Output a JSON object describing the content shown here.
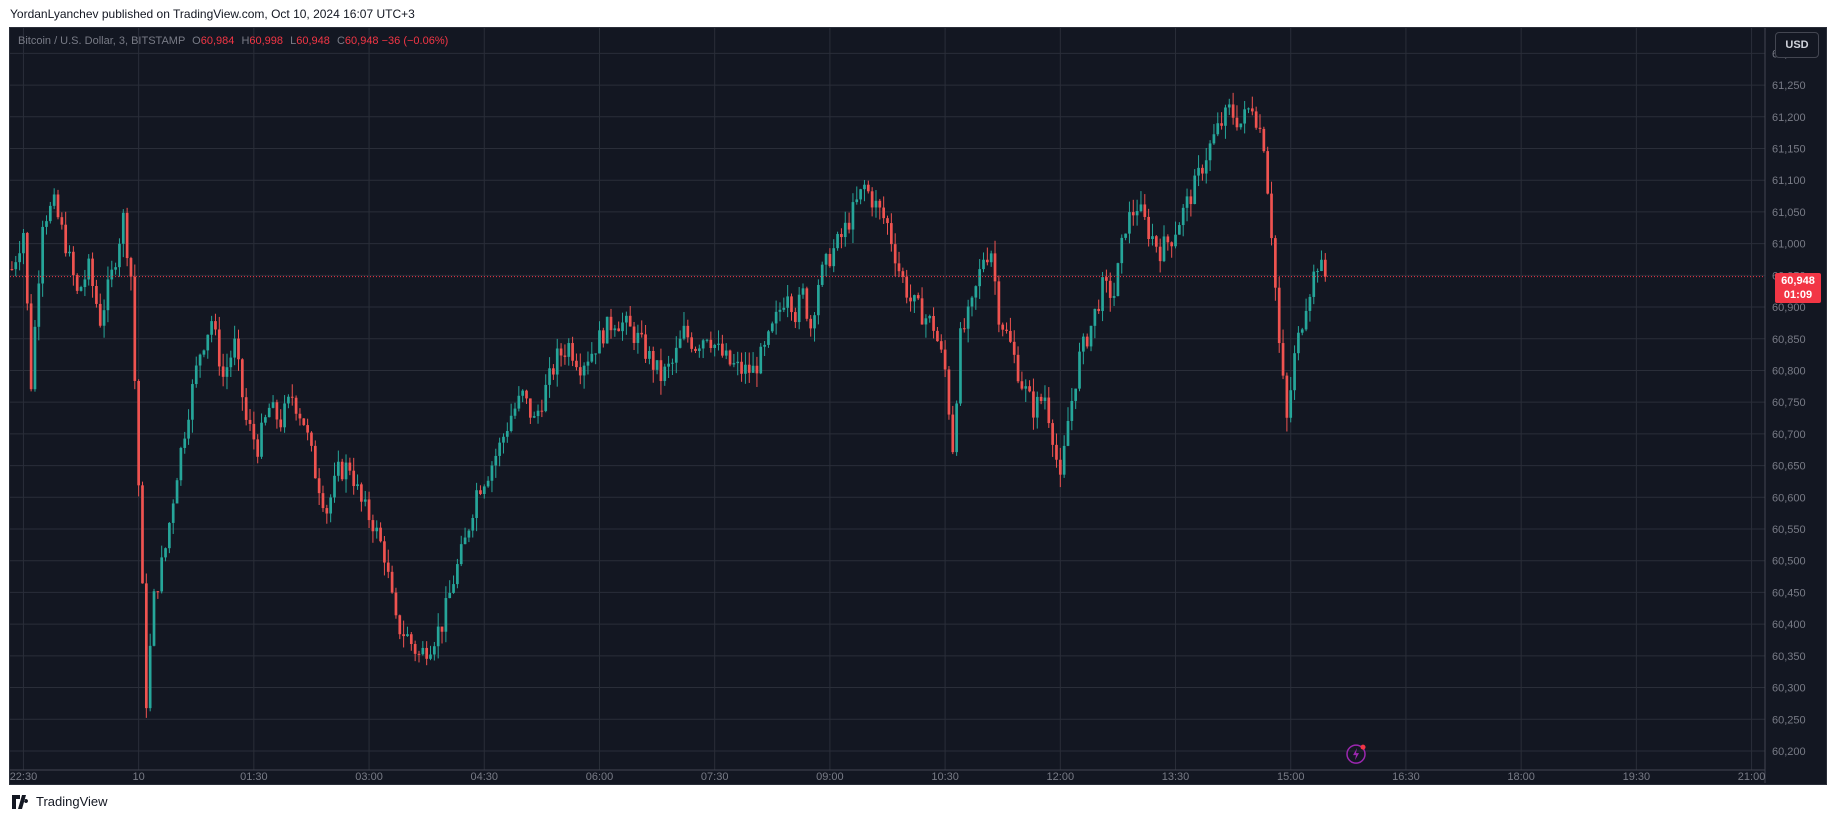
{
  "header": {
    "published_line": "YordanLyanchev published on TradingView.com, Oct 10, 2024 16:07 UTC+3"
  },
  "legend": {
    "symbol": "Bitcoin / U.S. Dollar, 3, BITSTAMP",
    "open_label": "O",
    "open": "60,984",
    "high_label": "H",
    "high": "60,998",
    "low_label": "L",
    "low": "60,948",
    "close_label": "C",
    "close": "60,948",
    "change": "−36 (−0.06%)"
  },
  "currency_button": {
    "label": "USD"
  },
  "last_price": {
    "price": "60,948",
    "countdown": "01:09"
  },
  "footer": {
    "brand": "TradingView"
  },
  "colors": {
    "background": "#131722",
    "grid": "#2a2e39",
    "up": "#26a69a",
    "down": "#ef5350",
    "axis_text": "#787b86",
    "last_price": "#f23645"
  },
  "chart_data": {
    "type": "candlestick",
    "title": "Bitcoin / U.S. Dollar, 3, BITSTAMP",
    "timeframe_minutes": 3,
    "x_start": "Oct 9 22:21",
    "ylim": [
      60170,
      61340
    ],
    "y_ticks": [
      61300,
      61250,
      61200,
      61150,
      61100,
      61050,
      61000,
      60950,
      60900,
      60850,
      60800,
      60750,
      60700,
      60650,
      60600,
      60550,
      60500,
      60450,
      60400,
      60350,
      60300,
      60250,
      60200
    ],
    "y_tick_labels": [
      "61,300",
      "61,250",
      "61,200",
      "61,150",
      "61,100",
      "61,050",
      "61,000",
      "60,950",
      "60,900",
      "60,850",
      "60,800",
      "60,750",
      "60,700",
      "60,650",
      "60,600",
      "60,550",
      "60,500",
      "60,450",
      "60,400",
      "60,350",
      "60,300",
      "60,250",
      "60,200"
    ],
    "x_tick_labels": [
      "22:30",
      "10",
      "01:30",
      "03:00",
      "04:30",
      "06:00",
      "07:30",
      "09:00",
      "10:30",
      "12:00",
      "13:30",
      "15:00",
      "16:30",
      "18:00",
      "19:30",
      "21:00"
    ],
    "x_tick_slots": [
      3,
      33,
      63,
      93,
      123,
      153,
      183,
      213,
      243,
      273,
      303,
      333,
      363,
      393,
      423,
      453
    ],
    "x_slots_total": 457,
    "last_price": 60948,
    "grid": true,
    "anchors": [
      [
        0,
        60960
      ],
      [
        3,
        61020
      ],
      [
        5,
        60780
      ],
      [
        8,
        61040
      ],
      [
        11,
        61060
      ],
      [
        14,
        61000
      ],
      [
        17,
        60920
      ],
      [
        20,
        60960
      ],
      [
        23,
        60880
      ],
      [
        26,
        60950
      ],
      [
        29,
        61040
      ],
      [
        31,
        60950
      ],
      [
        33,
        60620
      ],
      [
        35,
        60280
      ],
      [
        37,
        60440
      ],
      [
        40,
        60520
      ],
      [
        43,
        60640
      ],
      [
        46,
        60740
      ],
      [
        49,
        60830
      ],
      [
        52,
        60880
      ],
      [
        55,
        60790
      ],
      [
        58,
        60840
      ],
      [
        61,
        60720
      ],
      [
        64,
        60680
      ],
      [
        67,
        60740
      ],
      [
        70,
        60720
      ],
      [
        73,
        60760
      ],
      [
        76,
        60720
      ],
      [
        79,
        60640
      ],
      [
        82,
        60580
      ],
      [
        85,
        60640
      ],
      [
        88,
        60650
      ],
      [
        91,
        60590
      ],
      [
        94,
        60560
      ],
      [
        97,
        60510
      ],
      [
        100,
        60400
      ],
      [
        103,
        60380
      ],
      [
        106,
        60350
      ],
      [
        109,
        60370
      ],
      [
        112,
        60400
      ],
      [
        115,
        60470
      ],
      [
        118,
        60530
      ],
      [
        121,
        60610
      ],
      [
        124,
        60640
      ],
      [
        127,
        60680
      ],
      [
        130,
        60730
      ],
      [
        133,
        60760
      ],
      [
        136,
        60720
      ],
      [
        139,
        60770
      ],
      [
        142,
        60820
      ],
      [
        145,
        60840
      ],
      [
        148,
        60810
      ],
      [
        151,
        60830
      ],
      [
        154,
        60860
      ],
      [
        157,
        60880
      ],
      [
        160,
        60870
      ],
      [
        163,
        60850
      ],
      [
        166,
        60820
      ],
      [
        169,
        60790
      ],
      [
        172,
        60810
      ],
      [
        175,
        60860
      ],
      [
        178,
        60840
      ],
      [
        181,
        60860
      ],
      [
        184,
        60830
      ],
      [
        187,
        60810
      ],
      [
        190,
        60800
      ],
      [
        193,
        60800
      ],
      [
        196,
        60830
      ],
      [
        199,
        60880
      ],
      [
        202,
        60930
      ],
      [
        204,
        60890
      ],
      [
        206,
        60920
      ],
      [
        208,
        60870
      ],
      [
        210,
        60940
      ],
      [
        213,
        60980
      ],
      [
        216,
        61010
      ],
      [
        219,
        61050
      ],
      [
        222,
        61090
      ],
      [
        225,
        61060
      ],
      [
        228,
        61030
      ],
      [
        231,
        60960
      ],
      [
        234,
        60910
      ],
      [
        237,
        60890
      ],
      [
        240,
        60870
      ],
      [
        243,
        60800
      ],
      [
        245,
        60680
      ],
      [
        247,
        60850
      ],
      [
        250,
        60900
      ],
      [
        253,
        60980
      ],
      [
        255,
        60990
      ],
      [
        257,
        60890
      ],
      [
        260,
        60840
      ],
      [
        263,
        60780
      ],
      [
        266,
        60740
      ],
      [
        269,
        60760
      ],
      [
        271,
        60700
      ],
      [
        273,
        60620
      ],
      [
        275,
        60720
      ],
      [
        278,
        60820
      ],
      [
        281,
        60870
      ],
      [
        284,
        60930
      ],
      [
        287,
        60920
      ],
      [
        290,
        61030
      ],
      [
        293,
        61060
      ],
      [
        296,
        61020
      ],
      [
        299,
        60990
      ],
      [
        302,
        61010
      ],
      [
        305,
        61050
      ],
      [
        308,
        61090
      ],
      [
        311,
        61140
      ],
      [
        314,
        61180
      ],
      [
        317,
        61210
      ],
      [
        320,
        61190
      ],
      [
        323,
        61220
      ],
      [
        326,
        61160
      ],
      [
        328,
        61020
      ],
      [
        330,
        60840
      ],
      [
        332,
        60720
      ],
      [
        334,
        60820
      ],
      [
        337,
        60910
      ],
      [
        340,
        60970
      ],
      [
        342,
        60948
      ]
    ]
  }
}
